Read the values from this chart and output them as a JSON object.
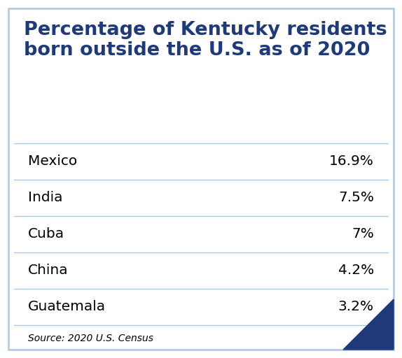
{
  "title_line1": "Percentage of Kentucky residents",
  "title_line2": "born outside the U.S. as of 2020",
  "title_color": "#1e3a7a",
  "title_fontsize": 19.5,
  "rows": [
    {
      "country": "Mexico",
      "value": "16.9%"
    },
    {
      "country": "India",
      "value": "7.5%"
    },
    {
      "country": "Cuba",
      "value": "7%"
    },
    {
      "country": "China",
      "value": "4.2%"
    },
    {
      "country": "Guatemala",
      "value": "3.2%"
    }
  ],
  "country_fontsize": 14.5,
  "value_fontsize": 14.5,
  "source_text": "Source: 2020 U.S. Census",
  "source_fontsize": 10,
  "background_color": "#ffffff",
  "border_color": "#a8c8e8",
  "divider_color": "#a8c8e8",
  "text_color": "#000000",
  "corner_triangle_color": "#1e3a7a",
  "fig_width": 5.74,
  "fig_height": 5.12,
  "dpi": 100
}
